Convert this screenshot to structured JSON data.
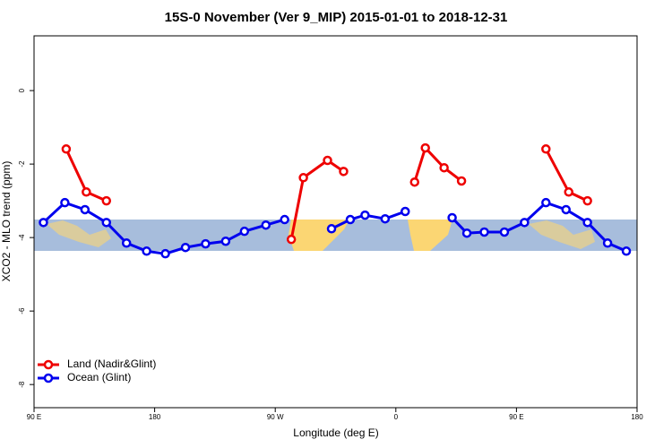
{
  "chart_data": {
    "type": "line",
    "title": "15S-0 November (Ver 9_MIP)   2015-01-01 to 2018-12-31",
    "x_label": "Longitude (deg E)",
    "y_label": "XCO2 - MLO trend (ppm)",
    "xlim": [
      90,
      540
    ],
    "ylim": [
      -8.63,
      1.49
    ],
    "xticks": [
      {
        "value": 90,
        "label": "90 E"
      },
      180,
      {
        "value": 270,
        "label": "90 W"
      },
      {
        "value": 360,
        "label": "0"
      },
      {
        "value": 450,
        "label": "90 E"
      },
      {
        "value": 540,
        "label": "180"
      }
    ],
    "yticks": [
      0,
      -2,
      -4,
      -6,
      -8
    ],
    "legend": "bottomleft",
    "series": [
      {
        "name": "Land (Nadir&Glint)",
        "color": "#ee0000",
        "x": [
          114,
          129,
          144,
          213,
          282,
          291,
          309,
          321,
          347,
          374,
          382,
          396,
          409,
          440,
          472,
          489,
          503
        ],
        "values": [
          -1.59,
          -2.76,
          -3.0,
          null,
          -4.05,
          -2.37,
          -1.9,
          -2.2,
          null,
          -2.49,
          -1.56,
          -2.1,
          -2.46,
          null,
          -1.59,
          -2.76,
          -3.0
        ]
      },
      {
        "name": "Ocean (Glint)",
        "color": "#0000ee",
        "x": [
          97,
          113,
          128,
          144,
          159,
          174,
          188,
          203,
          218,
          233,
          247,
          263,
          277,
          294,
          312,
          326,
          337,
          352,
          367,
          384,
          402,
          413,
          426,
          441,
          456,
          472,
          487,
          503,
          518,
          532
        ],
        "values": [
          -3.59,
          -3.05,
          -3.24,
          -3.59,
          -4.15,
          -4.37,
          -4.44,
          -4.27,
          -4.17,
          -4.1,
          -3.83,
          -3.66,
          -3.51,
          null,
          -3.76,
          -3.51,
          -3.39,
          -3.49,
          -3.29,
          null,
          -3.46,
          -3.88,
          -3.85,
          -3.85,
          -3.59,
          -3.05,
          -3.24,
          -3.59,
          -4.15,
          -4.37
        ]
      }
    ]
  }
}
